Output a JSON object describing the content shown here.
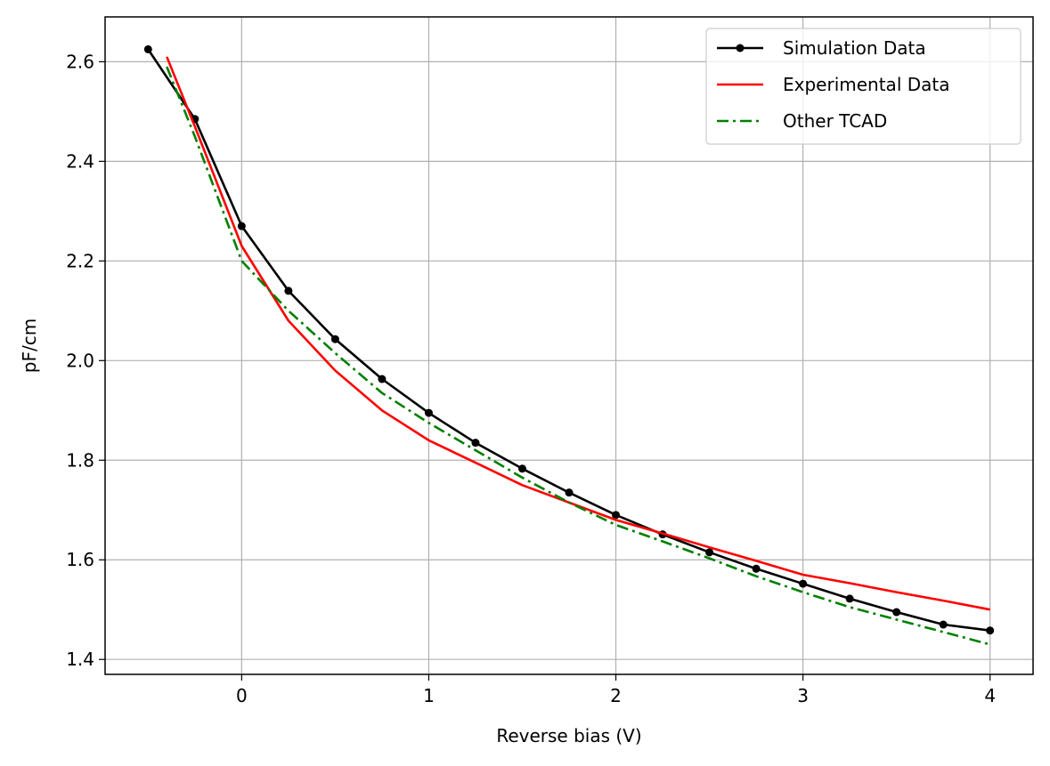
{
  "chart_data": {
    "type": "line",
    "title": "",
    "xlabel": "Reverse bias (V)",
    "ylabel": "pF/cm",
    "xlim": [
      -0.73,
      4.23
    ],
    "ylim": [
      1.37,
      2.69
    ],
    "x_ticks": [
      0,
      1,
      2,
      3,
      4
    ],
    "x_tick_labels": [
      "0",
      "1",
      "2",
      "3",
      "4"
    ],
    "y_ticks": [
      1.4,
      1.6,
      1.8,
      2.0,
      2.2,
      2.4,
      2.6
    ],
    "y_tick_labels": [
      "1.4",
      "1.6",
      "1.8",
      "2.0",
      "2.2",
      "2.4",
      "2.6"
    ],
    "grid": true,
    "legend_position": "top-right",
    "series": [
      {
        "name": "Simulation Data",
        "color": "#000000",
        "style": "solid-with-markers",
        "x": [
          -0.5,
          -0.25,
          0.0,
          0.25,
          0.5,
          0.75,
          1.0,
          1.25,
          1.5,
          1.75,
          2.0,
          2.25,
          2.5,
          2.75,
          3.0,
          3.25,
          3.5,
          3.75,
          4.0
        ],
        "y": [
          2.625,
          2.485,
          2.27,
          2.14,
          2.043,
          1.963,
          1.895,
          1.835,
          1.783,
          1.735,
          1.69,
          1.651,
          1.615,
          1.582,
          1.552,
          1.522,
          1.495,
          1.47,
          1.458
        ]
      },
      {
        "name": "Experimental Data",
        "color": "#ff0000",
        "style": "solid",
        "x": [
          -0.4,
          -0.25,
          0.0,
          0.25,
          0.5,
          0.75,
          1.0,
          1.25,
          1.5,
          1.75,
          2.0,
          2.25,
          2.5,
          2.75,
          3.0,
          3.25,
          3.5,
          3.75,
          4.0
        ],
        "y": [
          2.61,
          2.47,
          2.23,
          2.08,
          1.98,
          1.9,
          1.84,
          1.795,
          1.75,
          1.715,
          1.68,
          1.653,
          1.625,
          1.598,
          1.57,
          1.553,
          1.535,
          1.518,
          1.5
        ]
      },
      {
        "name": "Other TCAD",
        "color": "#008000",
        "style": "dash-dot",
        "x": [
          -0.4,
          -0.25,
          0.0,
          0.25,
          0.5,
          0.75,
          1.0,
          1.25,
          1.5,
          1.75,
          2.0,
          2.25,
          2.5,
          2.75,
          3.0,
          3.25,
          3.5,
          3.75,
          4.0
        ],
        "y": [
          2.59,
          2.45,
          2.2,
          2.1,
          2.015,
          1.935,
          1.875,
          1.82,
          1.765,
          1.715,
          1.67,
          1.637,
          1.603,
          1.567,
          1.535,
          1.505,
          1.48,
          1.455,
          1.43
        ]
      }
    ]
  }
}
